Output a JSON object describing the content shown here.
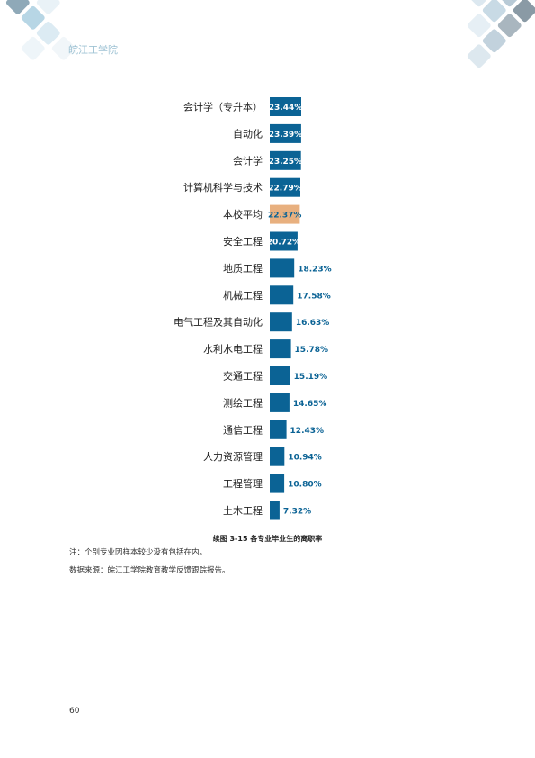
{
  "header": {
    "school": "皖江工学院"
  },
  "chart_data": {
    "type": "bar",
    "orientation": "horizontal",
    "categories": [
      "会计学（专升本）",
      "自动化",
      "会计学",
      "计算机科学与技术",
      "本校平均",
      "安全工程",
      "地质工程",
      "机械工程",
      "电气工程及其自动化",
      "水利水电工程",
      "交通工程",
      "测绘工程",
      "通信工程",
      "人力资源管理",
      "工程管理",
      "土木工程"
    ],
    "values": [
      23.44,
      23.39,
      23.25,
      22.79,
      22.37,
      20.72,
      18.23,
      17.58,
      16.63,
      15.78,
      15.19,
      14.65,
      12.43,
      10.94,
      10.8,
      7.32
    ],
    "value_labels": [
      "23.44%",
      "23.39%",
      "23.25%",
      "22.79%",
      "22.37%",
      "20.72%",
      "18.23%",
      "17.58%",
      "16.63%",
      "15.78%",
      "15.19%",
      "14.65%",
      "12.43%",
      "10.94%",
      "10.80%",
      "7.32%"
    ],
    "highlight_category": "本校平均",
    "colors": {
      "bar": "#0b6395",
      "highlight": "#e8b07f",
      "label_inside": "#ffffff",
      "label_outside": "#0b6395"
    },
    "title": "续图 3-15 各专业毕业生的离职率",
    "xlabel": "",
    "ylabel": "",
    "grid": false,
    "legend": "none"
  },
  "notes": [
    "注：个别专业因样本较少没有包括在内。",
    "数据来源：皖江工学院教育教学反馈跟踪报告。"
  ],
  "page_number": "60"
}
